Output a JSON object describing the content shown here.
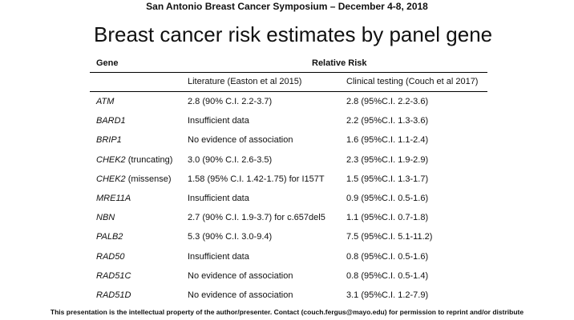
{
  "header": "San Antonio Breast Cancer Symposium – December 4-8, 2018",
  "title": "Breast cancer risk estimates by panel gene",
  "table": {
    "col_gene": "Gene",
    "col_relative_risk": "Relative Risk",
    "sub_literature": "Literature (Easton et al 2015)",
    "sub_clinical": "Clinical testing (Couch et al 2017)",
    "rows": [
      {
        "gene": "ATM",
        "note": "",
        "literature": "2.8 (90% C.I. 2.2-3.7)",
        "clinical": "2.8  (95%C.I. 2.2-3.6)"
      },
      {
        "gene": "BARD1",
        "note": "",
        "literature": "Insufficient data",
        "clinical": "2.2  (95%C.I. 1.3-3.6)"
      },
      {
        "gene": "BRIP1",
        "note": "",
        "literature": "No evidence of association",
        "clinical": "1.6  (95%C.I. 1.1-2.4)"
      },
      {
        "gene": "CHEK2",
        "note": " (truncating)",
        "literature": "3.0 (90% C.I. 2.6-3.5)",
        "clinical": "2.3  (95%C.I. 1.9-2.9)"
      },
      {
        "gene": "CHEK2",
        "note": " (missense)",
        "literature": "1.58 (95% C.I. 1.42-1.75) for I157T",
        "clinical": "1.5  (95%C.I. 1.3-1.7)"
      },
      {
        "gene": "MRE11A",
        "note": "",
        "literature": "Insufficient data",
        "clinical": "0.9  (95%C.I. 0.5-1.6)"
      },
      {
        "gene": "NBN",
        "note": "",
        "literature": "2.7 (90% C.I. 1.9-3.7) for c.657del5",
        "clinical": "1.1  (95%C.I. 0.7-1.8)"
      },
      {
        "gene": "PALB2",
        "note": "",
        "literature": "5.3 (90% C.I. 3.0-9.4)",
        "clinical": "7.5  (95%C.I. 5.1-11.2)"
      },
      {
        "gene": "RAD50",
        "note": "",
        "literature": "Insufficient data",
        "clinical": "0.8  (95%C.I. 0.5-1.6)"
      },
      {
        "gene": "RAD51C",
        "note": "",
        "literature": "No evidence of association",
        "clinical": "0.8  (95%C.I. 0.5-1.4)"
      },
      {
        "gene": "RAD51D",
        "note": "",
        "literature": "No evidence of association",
        "clinical": "3.1  (95%C.I. 1.2-7.9)"
      }
    ]
  },
  "footer": "This presentation is the intellectual property of the author/presenter.  Contact (couch.fergus@mayo.edu) for permission to reprint and/or distribute"
}
